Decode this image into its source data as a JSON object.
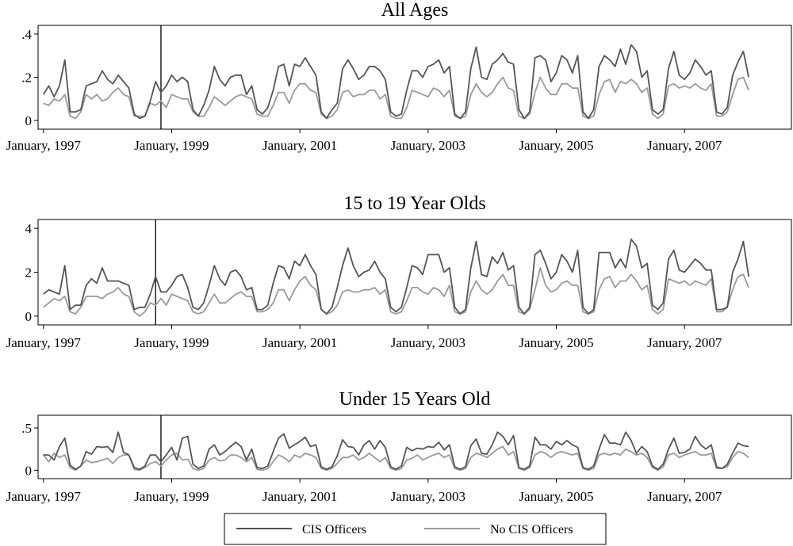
{
  "colors": {
    "cis": "#555555",
    "nocis": "#9a9a9a",
    "frame": "#000000"
  },
  "legend": {
    "cis_label": "CIS Officers",
    "nocis_label": "No CIS Officers"
  },
  "x_tick_labels": [
    "January, 1997",
    "January, 1999",
    "January, 2001",
    "January, 2003",
    "January, 2005",
    "January, 2007"
  ],
  "chart_data": [
    {
      "type": "line",
      "title": "All Ages",
      "ylim": [
        -0.04,
        0.44
      ],
      "yticks": [
        0,
        0.2,
        0.4
      ],
      "ytick_labels": [
        "0",
        ".2",
        ".4"
      ],
      "xlim": [
        -1,
        140
      ],
      "x": "month index, 0 = January, 1997",
      "vline_x": 22,
      "series": [
        {
          "name": "CIS Officers",
          "values": [
            0.12,
            0.16,
            0.11,
            0.16,
            0.28,
            0.04,
            0.04,
            0.05,
            0.16,
            0.17,
            0.18,
            0.23,
            0.19,
            0.17,
            0.21,
            0.18,
            0.15,
            0.03,
            0.01,
            0.02,
            0.09,
            0.18,
            0.13,
            0.16,
            0.21,
            0.18,
            0.2,
            0.18,
            0.05,
            0.02,
            0.07,
            0.14,
            0.25,
            0.19,
            0.16,
            0.2,
            0.21,
            0.21,
            0.12,
            0.16,
            0.05,
            0.03,
            0.06,
            0.14,
            0.25,
            0.26,
            0.16,
            0.26,
            0.25,
            0.29,
            0.25,
            0.21,
            0.04,
            0.01,
            0.05,
            0.08,
            0.24,
            0.28,
            0.24,
            0.19,
            0.21,
            0.25,
            0.25,
            0.23,
            0.19,
            0.04,
            0.02,
            0.03,
            0.14,
            0.23,
            0.23,
            0.2,
            0.25,
            0.26,
            0.28,
            0.22,
            0.25,
            0.03,
            0.01,
            0.04,
            0.24,
            0.34,
            0.2,
            0.19,
            0.26,
            0.28,
            0.31,
            0.27,
            0.26,
            0.05,
            0.01,
            0.04,
            0.29,
            0.3,
            0.28,
            0.18,
            0.22,
            0.3,
            0.28,
            0.22,
            0.3,
            0.04,
            0.01,
            0.05,
            0.25,
            0.3,
            0.28,
            0.25,
            0.33,
            0.26,
            0.35,
            0.32,
            0.2,
            0.23,
            0.05,
            0.03,
            0.05,
            0.24,
            0.32,
            0.21,
            0.19,
            0.22,
            0.28,
            0.25,
            0.21,
            0.23,
            0.04,
            0.03,
            0.06,
            0.21,
            0.27,
            0.32,
            0.2
          ]
        },
        {
          "name": "No CIS Officers",
          "values": [
            0.08,
            0.07,
            0.1,
            0.09,
            0.12,
            0.02,
            0.01,
            0.04,
            0.12,
            0.1,
            0.12,
            0.09,
            0.1,
            0.13,
            0.15,
            0.12,
            0.11,
            0.02,
            0.02,
            0.02,
            0.08,
            0.07,
            0.09,
            0.06,
            0.12,
            0.11,
            0.1,
            0.1,
            0.04,
            0.02,
            0.02,
            0.06,
            0.11,
            0.09,
            0.07,
            0.09,
            0.11,
            0.12,
            0.11,
            0.1,
            0.03,
            0.02,
            0.02,
            0.07,
            0.13,
            0.13,
            0.08,
            0.14,
            0.17,
            0.17,
            0.14,
            0.13,
            0.03,
            0.01,
            0.02,
            0.05,
            0.13,
            0.14,
            0.11,
            0.12,
            0.12,
            0.14,
            0.14,
            0.1,
            0.12,
            0.02,
            0.01,
            0.01,
            0.06,
            0.14,
            0.13,
            0.12,
            0.11,
            0.15,
            0.14,
            0.11,
            0.14,
            0.02,
            0.01,
            0.02,
            0.12,
            0.17,
            0.13,
            0.11,
            0.13,
            0.17,
            0.2,
            0.15,
            0.14,
            0.02,
            0.01,
            0.03,
            0.13,
            0.2,
            0.15,
            0.12,
            0.12,
            0.17,
            0.17,
            0.15,
            0.15,
            0.02,
            0.01,
            0.02,
            0.12,
            0.18,
            0.19,
            0.13,
            0.18,
            0.17,
            0.19,
            0.17,
            0.13,
            0.15,
            0.03,
            0.01,
            0.03,
            0.16,
            0.17,
            0.15,
            0.16,
            0.15,
            0.17,
            0.15,
            0.14,
            0.17,
            0.02,
            0.02,
            0.04,
            0.12,
            0.19,
            0.2,
            0.14
          ]
        }
      ]
    },
    {
      "type": "line",
      "title": "15 to 19 Year Olds",
      "ylim": [
        -0.4,
        4.4
      ],
      "yticks": [
        0,
        2,
        4
      ],
      "ytick_labels": [
        "0",
        "2",
        "4"
      ],
      "xlim": [
        -1,
        140
      ],
      "x": "month index, 0 = January, 1997",
      "vline_x": 21,
      "series": [
        {
          "name": "CIS Officers",
          "values": [
            1.0,
            1.2,
            1.1,
            1.0,
            2.3,
            0.3,
            0.5,
            0.5,
            1.4,
            1.7,
            1.5,
            2.2,
            1.6,
            1.6,
            1.6,
            1.5,
            1.4,
            0.3,
            0.4,
            0.4,
            1.0,
            1.8,
            1.1,
            1.1,
            1.4,
            1.8,
            1.9,
            1.3,
            0.4,
            0.3,
            0.6,
            1.4,
            2.3,
            1.7,
            1.4,
            2.0,
            2.1,
            1.8,
            1.2,
            1.3,
            0.3,
            0.3,
            0.5,
            1.5,
            2.3,
            2.2,
            1.7,
            2.5,
            2.3,
            2.8,
            2.3,
            1.9,
            0.3,
            0.1,
            0.4,
            1.3,
            2.3,
            3.1,
            2.3,
            1.8,
            2.0,
            2.1,
            2.5,
            2.0,
            1.7,
            0.4,
            0.2,
            0.4,
            1.3,
            2.3,
            2.2,
            1.9,
            2.8,
            2.8,
            2.8,
            2.0,
            2.2,
            0.4,
            0.1,
            0.3,
            2.2,
            3.4,
            1.9,
            1.8,
            2.7,
            2.4,
            2.9,
            2.1,
            2.3,
            0.4,
            0.1,
            0.4,
            2.8,
            3.0,
            2.4,
            1.7,
            2.0,
            2.8,
            2.5,
            2.0,
            3.0,
            0.4,
            0.1,
            0.3,
            2.9,
            2.9,
            2.9,
            2.2,
            2.6,
            2.2,
            3.5,
            3.2,
            2.2,
            2.4,
            0.5,
            0.3,
            0.6,
            2.6,
            3.0,
            2.1,
            2.0,
            2.3,
            2.6,
            2.4,
            2.1,
            2.1,
            0.3,
            0.3,
            0.4,
            2.0,
            2.6,
            3.4,
            1.8
          ]
        },
        {
          "name": "No CIS Officers",
          "values": [
            0.4,
            0.6,
            0.8,
            0.7,
            0.9,
            0.2,
            0.1,
            0.4,
            0.9,
            0.9,
            0.9,
            0.8,
            1.0,
            1.1,
            1.3,
            1.0,
            0.9,
            0.2,
            0.0,
            0.2,
            0.6,
            0.5,
            0.8,
            0.5,
            1.0,
            0.9,
            0.8,
            0.7,
            0.2,
            0.1,
            0.2,
            0.6,
            1.0,
            0.6,
            0.6,
            0.8,
            1.0,
            1.1,
            0.9,
            0.9,
            0.2,
            0.2,
            0.3,
            0.6,
            1.2,
            1.2,
            0.7,
            1.2,
            1.6,
            1.8,
            1.4,
            1.2,
            0.3,
            0.1,
            0.2,
            0.5,
            1.1,
            1.2,
            1.1,
            1.1,
            1.2,
            1.2,
            1.3,
            1.0,
            1.2,
            0.2,
            0.1,
            0.2,
            0.7,
            1.3,
            1.3,
            1.1,
            1.0,
            1.3,
            1.2,
            0.9,
            1.4,
            0.2,
            0.1,
            0.2,
            1.1,
            1.6,
            1.2,
            1.0,
            1.2,
            1.6,
            1.9,
            1.4,
            1.4,
            0.2,
            0.1,
            0.3,
            1.2,
            2.2,
            1.4,
            1.1,
            1.2,
            1.5,
            1.6,
            1.4,
            1.4,
            0.2,
            0.1,
            0.2,
            1.2,
            1.7,
            1.8,
            1.3,
            1.6,
            1.6,
            1.9,
            1.6,
            1.2,
            1.4,
            0.3,
            0.1,
            0.3,
            1.7,
            1.6,
            1.5,
            1.6,
            1.4,
            1.6,
            1.5,
            1.4,
            1.7,
            0.2,
            0.2,
            0.4,
            1.2,
            1.8,
            1.9,
            1.3
          ]
        }
      ]
    },
    {
      "type": "line",
      "title": "Under 15 Years Old",
      "ylim": [
        -0.1,
        0.65
      ],
      "yticks": [
        0,
        0.5
      ],
      "ytick_labels": [
        "0",
        ".5"
      ],
      "xlim": [
        -1,
        140
      ],
      "x": "month index, 0 = January, 1997",
      "vline_x": 22,
      "series": [
        {
          "name": "CIS Officers",
          "values": [
            0.18,
            0.18,
            0.12,
            0.28,
            0.38,
            0.06,
            0.01,
            0.05,
            0.22,
            0.19,
            0.28,
            0.27,
            0.28,
            0.21,
            0.45,
            0.21,
            0.18,
            0.03,
            0.01,
            0.05,
            0.18,
            0.18,
            0.1,
            0.18,
            0.27,
            0.12,
            0.38,
            0.4,
            0.07,
            0.02,
            0.05,
            0.25,
            0.3,
            0.18,
            0.22,
            0.28,
            0.33,
            0.28,
            0.12,
            0.25,
            0.03,
            0.02,
            0.05,
            0.22,
            0.38,
            0.43,
            0.26,
            0.3,
            0.34,
            0.39,
            0.28,
            0.3,
            0.04,
            0.01,
            0.04,
            0.17,
            0.36,
            0.28,
            0.27,
            0.18,
            0.3,
            0.35,
            0.25,
            0.35,
            0.27,
            0.04,
            0.01,
            0.05,
            0.27,
            0.23,
            0.26,
            0.25,
            0.28,
            0.27,
            0.33,
            0.24,
            0.3,
            0.04,
            0.01,
            0.04,
            0.29,
            0.37,
            0.2,
            0.19,
            0.3,
            0.45,
            0.4,
            0.3,
            0.41,
            0.03,
            0.01,
            0.05,
            0.39,
            0.3,
            0.3,
            0.25,
            0.34,
            0.3,
            0.35,
            0.3,
            0.27,
            0.03,
            0.01,
            0.05,
            0.25,
            0.42,
            0.32,
            0.32,
            0.3,
            0.45,
            0.35,
            0.2,
            0.28,
            0.22,
            0.05,
            0.01,
            0.07,
            0.25,
            0.38,
            0.2,
            0.21,
            0.25,
            0.4,
            0.3,
            0.25,
            0.3,
            0.04,
            0.02,
            0.07,
            0.2,
            0.32,
            0.29,
            0.28
          ]
        },
        {
          "name": "No CIS Officers",
          "values": [
            0.18,
            0.1,
            0.2,
            0.15,
            0.18,
            0.03,
            0.0,
            0.05,
            0.12,
            0.09,
            0.1,
            0.12,
            0.14,
            0.08,
            0.15,
            0.18,
            0.18,
            0.01,
            0.0,
            0.03,
            0.08,
            0.1,
            0.05,
            0.12,
            0.18,
            0.2,
            0.12,
            0.13,
            0.02,
            0.0,
            0.02,
            0.12,
            0.15,
            0.11,
            0.12,
            0.18,
            0.18,
            0.15,
            0.1,
            0.15,
            0.01,
            0.0,
            0.02,
            0.1,
            0.18,
            0.15,
            0.1,
            0.18,
            0.15,
            0.2,
            0.18,
            0.15,
            0.02,
            0.0,
            0.02,
            0.08,
            0.15,
            0.15,
            0.18,
            0.12,
            0.15,
            0.2,
            0.15,
            0.1,
            0.15,
            0.02,
            0.0,
            0.02,
            0.12,
            0.14,
            0.18,
            0.12,
            0.15,
            0.18,
            0.2,
            0.15,
            0.18,
            0.02,
            0.0,
            0.02,
            0.15,
            0.2,
            0.18,
            0.15,
            0.2,
            0.25,
            0.28,
            0.18,
            0.22,
            0.02,
            0.0,
            0.03,
            0.18,
            0.22,
            0.2,
            0.15,
            0.2,
            0.22,
            0.2,
            0.18,
            0.2,
            0.02,
            0.0,
            0.02,
            0.18,
            0.2,
            0.18,
            0.2,
            0.18,
            0.25,
            0.22,
            0.18,
            0.2,
            0.15,
            0.03,
            0.0,
            0.04,
            0.18,
            0.2,
            0.15,
            0.18,
            0.2,
            0.22,
            0.18,
            0.18,
            0.2,
            0.02,
            0.02,
            0.04,
            0.15,
            0.22,
            0.2,
            0.15
          ]
        }
      ]
    }
  ]
}
